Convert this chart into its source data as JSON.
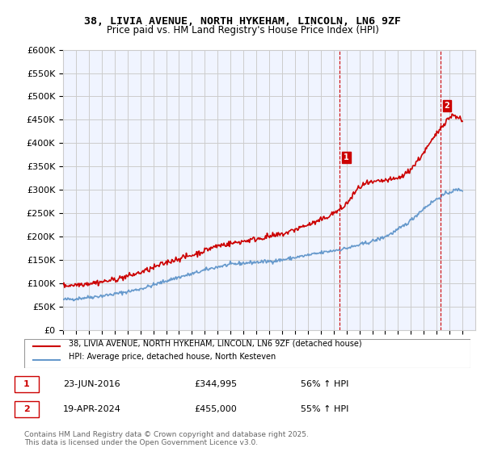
{
  "title": "38, LIVIA AVENUE, NORTH HYKEHAM, LINCOLN, LN6 9ZF",
  "subtitle": "Price paid vs. HM Land Registry's House Price Index (HPI)",
  "legend_line1": "38, LIVIA AVENUE, NORTH HYKEHAM, LINCOLN, LN6 9ZF (detached house)",
  "legend_line2": "HPI: Average price, detached house, North Kesteven",
  "annotation1_label": "1",
  "annotation1_date": "23-JUN-2016",
  "annotation1_price": "£344,995",
  "annotation1_hpi": "56% ↑ HPI",
  "annotation2_label": "2",
  "annotation2_date": "19-APR-2024",
  "annotation2_price": "£455,000",
  "annotation2_hpi": "55% ↑ HPI",
  "footer": "Contains HM Land Registry data © Crown copyright and database right 2025.\nThis data is licensed under the Open Government Licence v3.0.",
  "red_color": "#cc0000",
  "blue_color": "#6699cc",
  "annotation_color": "#cc0000",
  "background_color": "#f0f4ff",
  "grid_color": "#cccccc",
  "ylim": [
    0,
    600000
  ],
  "yticks": [
    0,
    50000,
    100000,
    150000,
    200000,
    250000,
    300000,
    350000,
    400000,
    450000,
    500000,
    550000,
    600000
  ],
  "xlim_start": 1995,
  "xlim_end": 2027
}
